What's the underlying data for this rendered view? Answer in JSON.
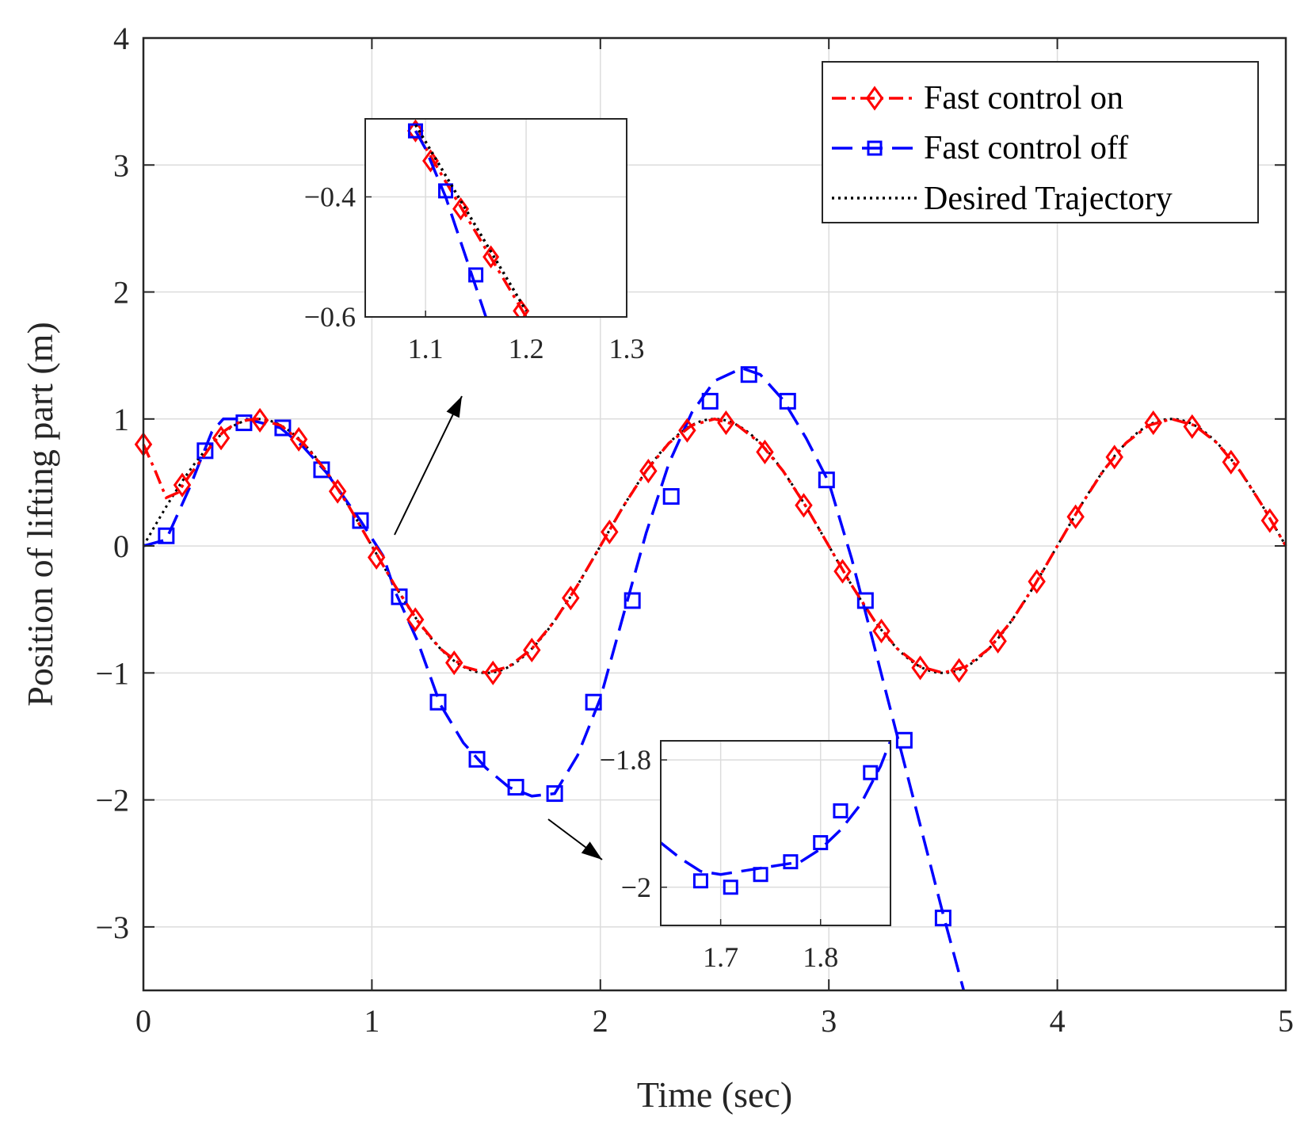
{
  "chart_data": {
    "type": "line",
    "title": "",
    "xlabel": "Time (sec)",
    "ylabel": "Position of lifting part (m)",
    "xlim": [
      0,
      5
    ],
    "ylim": [
      -3.5,
      4
    ],
    "xticks": [
      0,
      1,
      2,
      3,
      4,
      5
    ],
    "yticks": [
      -3,
      -2,
      -1,
      0,
      1,
      2,
      3,
      4
    ],
    "xtick_labels": [
      "0",
      "1",
      "2",
      "3",
      "4",
      "5"
    ],
    "ytick_labels": [
      "−3",
      "−2",
      "−1",
      "0",
      "1",
      "2",
      "3",
      "4"
    ],
    "grid": true,
    "legend": {
      "position": "top-right"
    },
    "series": [
      {
        "name": "Fast control on",
        "color": "#ff0000",
        "line_style": "dash-dot",
        "marker": "diamond",
        "x": [
          0,
          0.05,
          0.1,
          0.15,
          0.2,
          0.25,
          0.3,
          0.35,
          0.4,
          0.45,
          0.5,
          0.6,
          0.7,
          0.8,
          0.9,
          1.0,
          1.1,
          1.2,
          1.3,
          1.4,
          1.5,
          1.6,
          1.7,
          1.8,
          1.9,
          2.0,
          2.1,
          2.2,
          2.3,
          2.4,
          2.5,
          2.6,
          2.7,
          2.8,
          2.9,
          3.0,
          3.1,
          3.2,
          3.3,
          3.4,
          3.5,
          3.6,
          3.7,
          3.8,
          3.9,
          4.0,
          4.1,
          4.2,
          4.3,
          4.4,
          4.5,
          4.6,
          4.7,
          4.8,
          4.9,
          5.0
        ],
        "values": [
          0.8,
          0.6,
          0.38,
          0.42,
          0.55,
          0.67,
          0.8,
          0.9,
          0.96,
          0.99,
          1.0,
          0.95,
          0.81,
          0.59,
          0.31,
          0.0,
          -0.31,
          -0.59,
          -0.81,
          -0.95,
          -1.0,
          -0.95,
          -0.81,
          -0.59,
          -0.31,
          0.0,
          0.31,
          0.59,
          0.81,
          0.95,
          1.0,
          0.95,
          0.81,
          0.59,
          0.31,
          0.0,
          -0.31,
          -0.59,
          -0.81,
          -0.95,
          -1.0,
          -0.95,
          -0.81,
          -0.59,
          -0.31,
          0.0,
          0.31,
          0.59,
          0.81,
          0.95,
          1.0,
          0.95,
          0.81,
          0.59,
          0.31,
          0.0
        ],
        "marker_x": [
          0.0,
          0.17,
          0.34,
          0.51,
          0.68,
          0.85,
          1.02,
          1.19,
          1.36,
          1.53,
          1.7,
          1.87,
          2.04,
          2.21,
          2.38,
          2.55,
          2.72,
          2.89,
          3.06,
          3.23,
          3.4,
          3.57,
          3.74,
          3.91,
          4.08,
          4.25,
          4.42,
          4.59,
          4.76,
          4.93
        ],
        "marker_values": [
          0.8,
          0.48,
          0.85,
          0.99,
          0.84,
          0.43,
          -0.09,
          -0.58,
          -0.92,
          -1.0,
          -0.82,
          -0.41,
          0.11,
          0.59,
          0.91,
          0.97,
          0.74,
          0.32,
          -0.2,
          -0.67,
          -0.96,
          -0.98,
          -0.75,
          -0.28,
          0.23,
          0.7,
          0.97,
          0.94,
          0.66,
          0.2
        ]
      },
      {
        "name": "Fast control off",
        "color": "#0000ff",
        "line_style": "dash",
        "marker": "square",
        "x": [
          0,
          0.1,
          0.2,
          0.3,
          0.35,
          0.45,
          0.6,
          0.7,
          0.8,
          0.95,
          1.05,
          1.1,
          1.2,
          1.3,
          1.4,
          1.5,
          1.6,
          1.7,
          1.8,
          1.9,
          2.0,
          2.1,
          2.2,
          2.3,
          2.4,
          2.5,
          2.62,
          2.7,
          2.8,
          2.9,
          3.0,
          3.1,
          3.2,
          3.3,
          3.4,
          3.5,
          3.59
        ],
        "values": [
          0.0,
          0.05,
          0.45,
          0.9,
          1.0,
          1.0,
          0.93,
          0.78,
          0.58,
          0.2,
          -0.08,
          -0.35,
          -0.75,
          -1.25,
          -1.55,
          -1.75,
          -1.9,
          -1.97,
          -1.95,
          -1.65,
          -1.2,
          -0.55,
          0.1,
          0.65,
          1.05,
          1.3,
          1.4,
          1.35,
          1.15,
          0.85,
          0.5,
          -0.1,
          -0.8,
          -1.5,
          -2.2,
          -2.9,
          -3.5
        ],
        "marker_x": [
          0.1,
          0.27,
          0.44,
          0.61,
          0.78,
          0.95,
          1.12,
          1.29,
          1.46,
          1.63,
          1.8,
          1.97,
          2.14,
          2.31,
          2.48,
          2.65,
          2.82,
          2.99,
          3.16,
          3.33,
          3.5
        ],
        "marker_values": [
          0.08,
          0.75,
          0.97,
          0.93,
          0.6,
          0.2,
          -0.4,
          -1.23,
          -1.68,
          -1.9,
          -1.95,
          -1.23,
          -0.43,
          0.39,
          1.14,
          1.35,
          1.14,
          0.52,
          -0.43,
          -1.53,
          -2.93
        ]
      },
      {
        "name": "Desired Trajectory",
        "color": "#000000",
        "line_style": "dotted",
        "marker": "none",
        "function": "sin(pi*t)"
      }
    ],
    "insets": [
      {
        "xlim": [
          1.04,
          1.3
        ],
        "ylim": [
          -0.6,
          -0.27
        ],
        "xticks": [
          1.1,
          1.2,
          1.3
        ],
        "yticks": [
          -0.4,
          -0.6
        ],
        "xtick_labels": [
          "1.1",
          "1.2",
          "1.3"
        ],
        "ytick_labels": [
          "−0.4",
          "−0.6"
        ],
        "series": [
          {
            "name": "Fast control on",
            "x": [
              1.09,
              1.2
            ],
            "values": [
              -0.29,
              -0.6
            ],
            "marker_x": [
              1.09,
              1.105,
              1.135,
              1.165,
              1.195
            ],
            "marker_values": [
              -0.29,
              -0.34,
              -0.42,
              -0.5,
              -0.59
            ]
          },
          {
            "name": "Fast control off",
            "x": [
              1.09,
              1.1,
              1.11,
              1.12,
              1.13,
              1.14,
              1.15,
              1.16
            ],
            "values": [
              -0.29,
              -0.32,
              -0.36,
              -0.4,
              -0.45,
              -0.5,
              -0.55,
              -0.6
            ],
            "marker_x": [
              1.09,
              1.12,
              1.15
            ],
            "marker_values": [
              -0.29,
              -0.39,
              -0.53
            ]
          },
          {
            "name": "Desired Trajectory",
            "x": [
              1.09,
              1.2
            ],
            "values": [
              -0.28,
              -0.59
            ]
          }
        ]
      },
      {
        "xlim": [
          1.64,
          1.87
        ],
        "ylim": [
          -2.06,
          -1.77
        ],
        "xticks": [
          1.7,
          1.8
        ],
        "yticks": [
          -1.8,
          -2.0
        ],
        "xtick_labels": [
          "1.7",
          "1.8"
        ],
        "ytick_labels": [
          "−1.8",
          "−2"
        ],
        "series": [
          {
            "name": "Fast control off",
            "x": [
              1.64,
              1.66,
              1.68,
              1.7,
              1.72,
              1.74,
              1.76,
              1.78,
              1.8,
              1.82,
              1.84,
              1.86,
              1.87
            ],
            "values": [
              -1.93,
              -1.955,
              -1.975,
              -1.98,
              -1.975,
              -1.97,
              -1.965,
              -1.96,
              -1.94,
              -1.91,
              -1.87,
              -1.81,
              -1.77
            ],
            "marker_x": [
              1.68,
              1.71,
              1.74,
              1.77,
              1.8,
              1.82,
              1.85
            ],
            "marker_values": [
              -1.99,
              -2.0,
              -1.98,
              -1.96,
              -1.93,
              -1.88,
              -1.82
            ]
          }
        ]
      }
    ]
  }
}
